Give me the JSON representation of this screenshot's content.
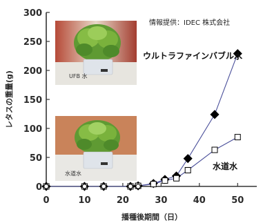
{
  "chart_data": {
    "type": "line",
    "credit": "情報提供：IDEC 株式会社",
    "xlabel": "播種後期間（日）",
    "ylabel": "レタスの重量(g)",
    "xlim": [
      0,
      55
    ],
    "ylim": [
      0,
      300
    ],
    "x_ticks": [
      "0",
      "10",
      "20",
      "30",
      "40",
      "50"
    ],
    "y_ticks": [
      "0",
      "50",
      "100",
      "150",
      "200",
      "250",
      "300"
    ],
    "grid": false,
    "series": [
      {
        "name": "ウルトラファインバブル水",
        "marker": "filled-diamond",
        "color": "#4a4f9a",
        "x": [
          0,
          10,
          15,
          22,
          24,
          28,
          31,
          34,
          37,
          44,
          50
        ],
        "y": [
          0,
          0,
          0,
          0,
          1,
          5,
          12,
          18,
          48,
          124,
          229
        ]
      },
      {
        "name": "水道水",
        "marker": "open-square",
        "color": "#4a4f9a",
        "x": [
          0,
          10,
          15,
          22,
          24,
          28,
          31,
          34,
          37,
          44,
          50
        ],
        "y": [
          0,
          0,
          0,
          0,
          1,
          4,
          10,
          14,
          28,
          63,
          85
        ]
      }
    ],
    "photos": [
      {
        "name": "ufb-lettuce-photo",
        "label": "UFB 水"
      },
      {
        "name": "tap-water-lettuce-photo",
        "label": "水道水"
      }
    ]
  }
}
